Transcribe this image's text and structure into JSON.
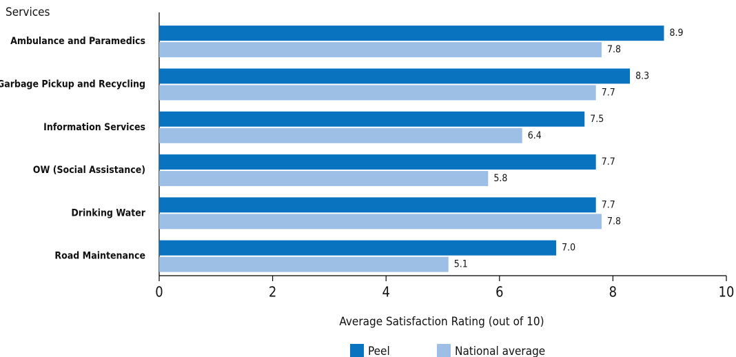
{
  "chart_data": {
    "type": "barh",
    "y_axis_title": "Services",
    "x_axis_title": "Average Satisfaction Rating (out of 10)",
    "categories": [
      "Ambulance and Paramedics",
      "Garbage Pickup and Recycling",
      "Information Services",
      "OW (Social Assistance)",
      "Drinking Water",
      "Road Maintenance"
    ],
    "series": [
      {
        "name": "Peel",
        "color": "#0a73c0",
        "values": [
          8.9,
          8.3,
          7.5,
          7.7,
          7.7,
          7
        ],
        "value_labels": [
          "8.9",
          "8.3",
          "7.5",
          "7.7",
          "7.7",
          "7.0"
        ]
      },
      {
        "name": "National average",
        "color": "#9dbfe5",
        "values": [
          7.8,
          7.7,
          6.4,
          5.8,
          7.8,
          5.1
        ],
        "value_labels": [
          "7.8",
          "7.7",
          "6.4",
          "5.8",
          "7.8",
          "5.1"
        ]
      }
    ],
    "xlim": [
      0,
      10
    ],
    "xticks": [
      0,
      2,
      4,
      6,
      8,
      10
    ],
    "grid": false,
    "legend": "bottom"
  }
}
